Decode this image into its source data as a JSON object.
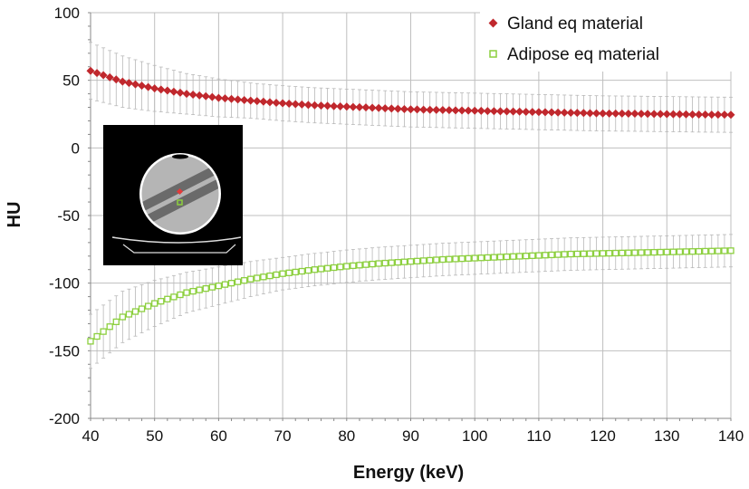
{
  "chart_data": {
    "type": "scatter",
    "title": "",
    "xlabel": "Energy (keV)",
    "ylabel": "HU",
    "xlim": [
      40,
      140
    ],
    "ylim": [
      -200,
      100
    ],
    "x_ticks": [
      40,
      50,
      60,
      70,
      80,
      90,
      100,
      110,
      120,
      130,
      140
    ],
    "y_ticks": [
      100,
      50,
      0,
      -50,
      -100,
      -150,
      -200
    ],
    "grid": true,
    "legend_position": "top-right",
    "colors": {
      "gland": "#c0282d",
      "adipose": "#8ccf3e",
      "errorbar": "#b8b8b8",
      "grid": "#bfbfbf"
    },
    "inset": "phantom-ct-image",
    "series": [
      {
        "name": "Gland eq material",
        "marker": "diamond",
        "x": [
          40,
          45,
          50,
          55,
          60,
          65,
          70,
          75,
          80,
          85,
          90,
          95,
          100,
          105,
          110,
          115,
          120,
          125,
          130,
          135,
          140
        ],
        "y": [
          57,
          49,
          44,
          40,
          37,
          35,
          33,
          31.5,
          30.5,
          29.5,
          28.5,
          28,
          27.5,
          27,
          26.5,
          26,
          25.5,
          25.3,
          25,
          24.7,
          24.5
        ],
        "err": [
          21,
          19,
          17,
          15,
          14,
          13,
          13,
          13,
          13,
          13,
          13,
          13,
          13,
          13,
          13,
          13,
          13,
          13,
          13,
          13,
          13
        ]
      },
      {
        "name": "Adipose eq material",
        "marker": "square-open",
        "x": [
          40,
          45,
          50,
          55,
          60,
          65,
          70,
          75,
          80,
          85,
          90,
          95,
          100,
          105,
          110,
          115,
          120,
          125,
          130,
          135,
          140
        ],
        "y": [
          -143,
          -125,
          -115,
          -107,
          -102,
          -97,
          -93,
          -90,
          -87.5,
          -85.5,
          -84,
          -82.5,
          -81.5,
          -80.5,
          -79.5,
          -78.5,
          -78,
          -77.5,
          -77,
          -76.5,
          -76
        ],
        "err": [
          20,
          19,
          17,
          15,
          14,
          13,
          12,
          12,
          12,
          12,
          12,
          12,
          12,
          12,
          12,
          12,
          12,
          12,
          12,
          12,
          12
        ]
      }
    ]
  }
}
